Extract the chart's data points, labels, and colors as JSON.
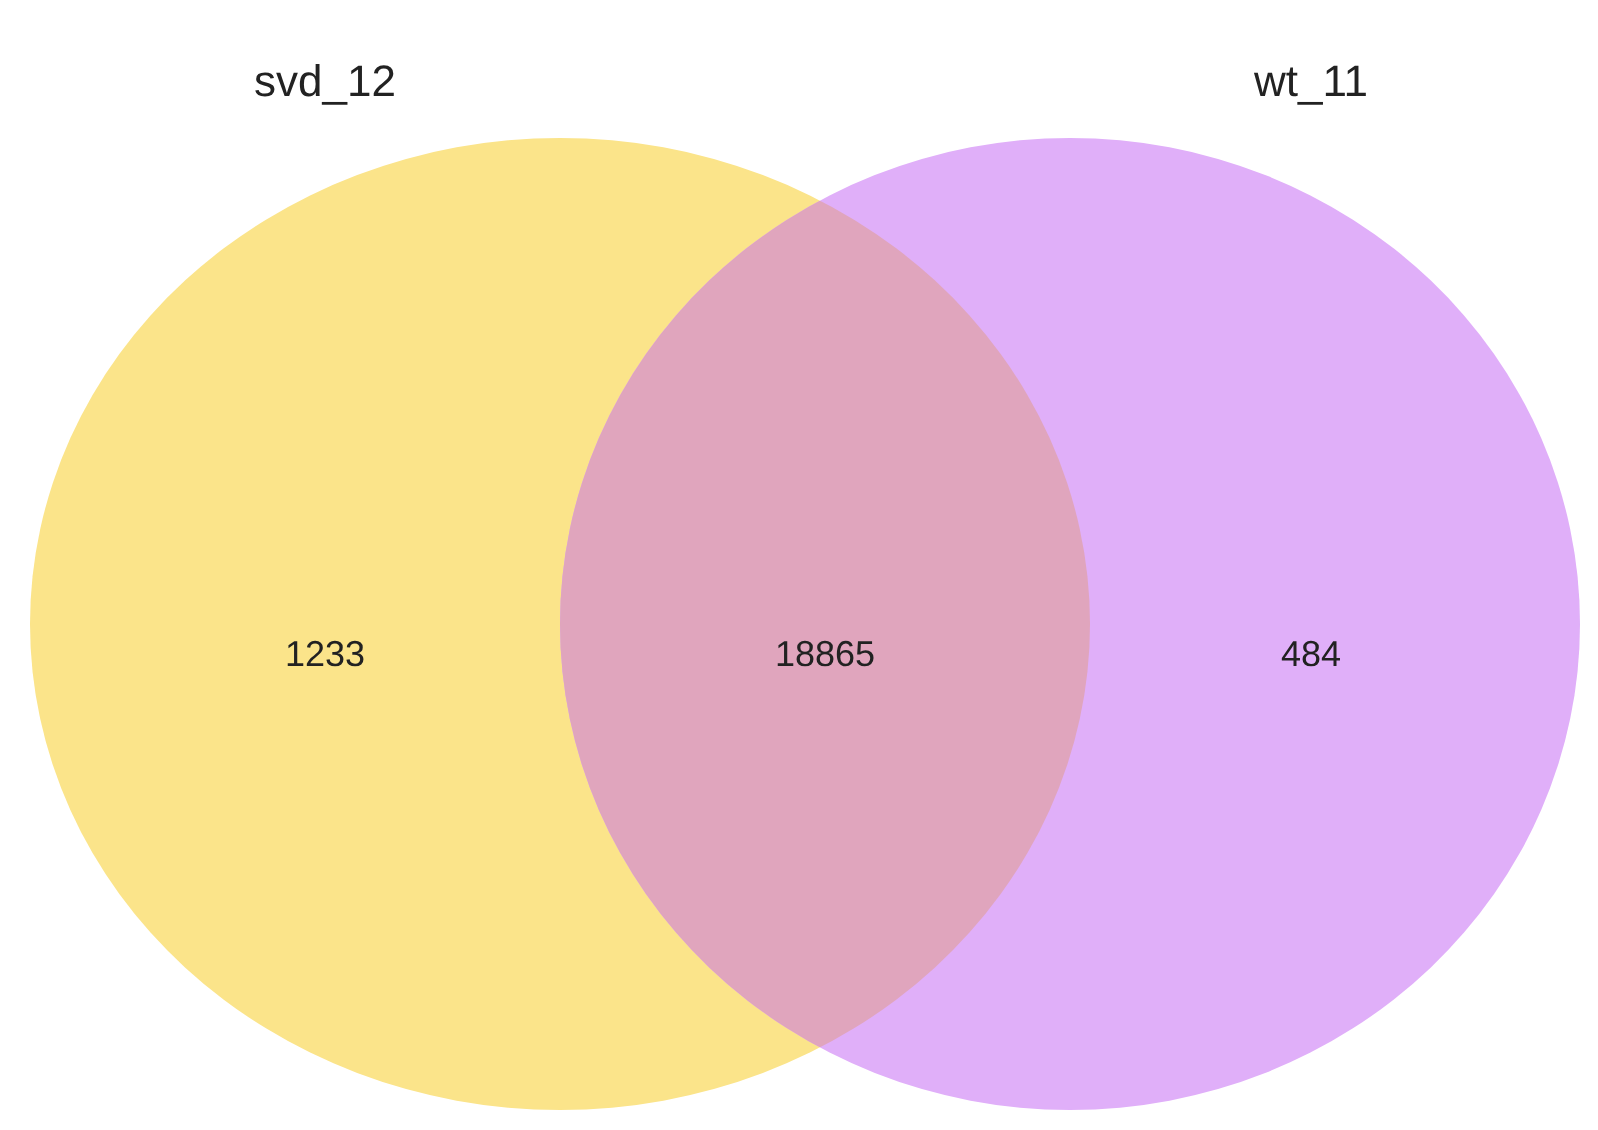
{
  "chart_data": {
    "type": "other",
    "categories": [
      "svd_12",
      null,
      "wt_11"
    ],
    "values": [
      1233,
      18865,
      484
    ],
    "colors": [
      "#fbe48a",
      "#e0a5bd",
      "#e0aff9"
    ],
    "data_labels": true
  }
}
